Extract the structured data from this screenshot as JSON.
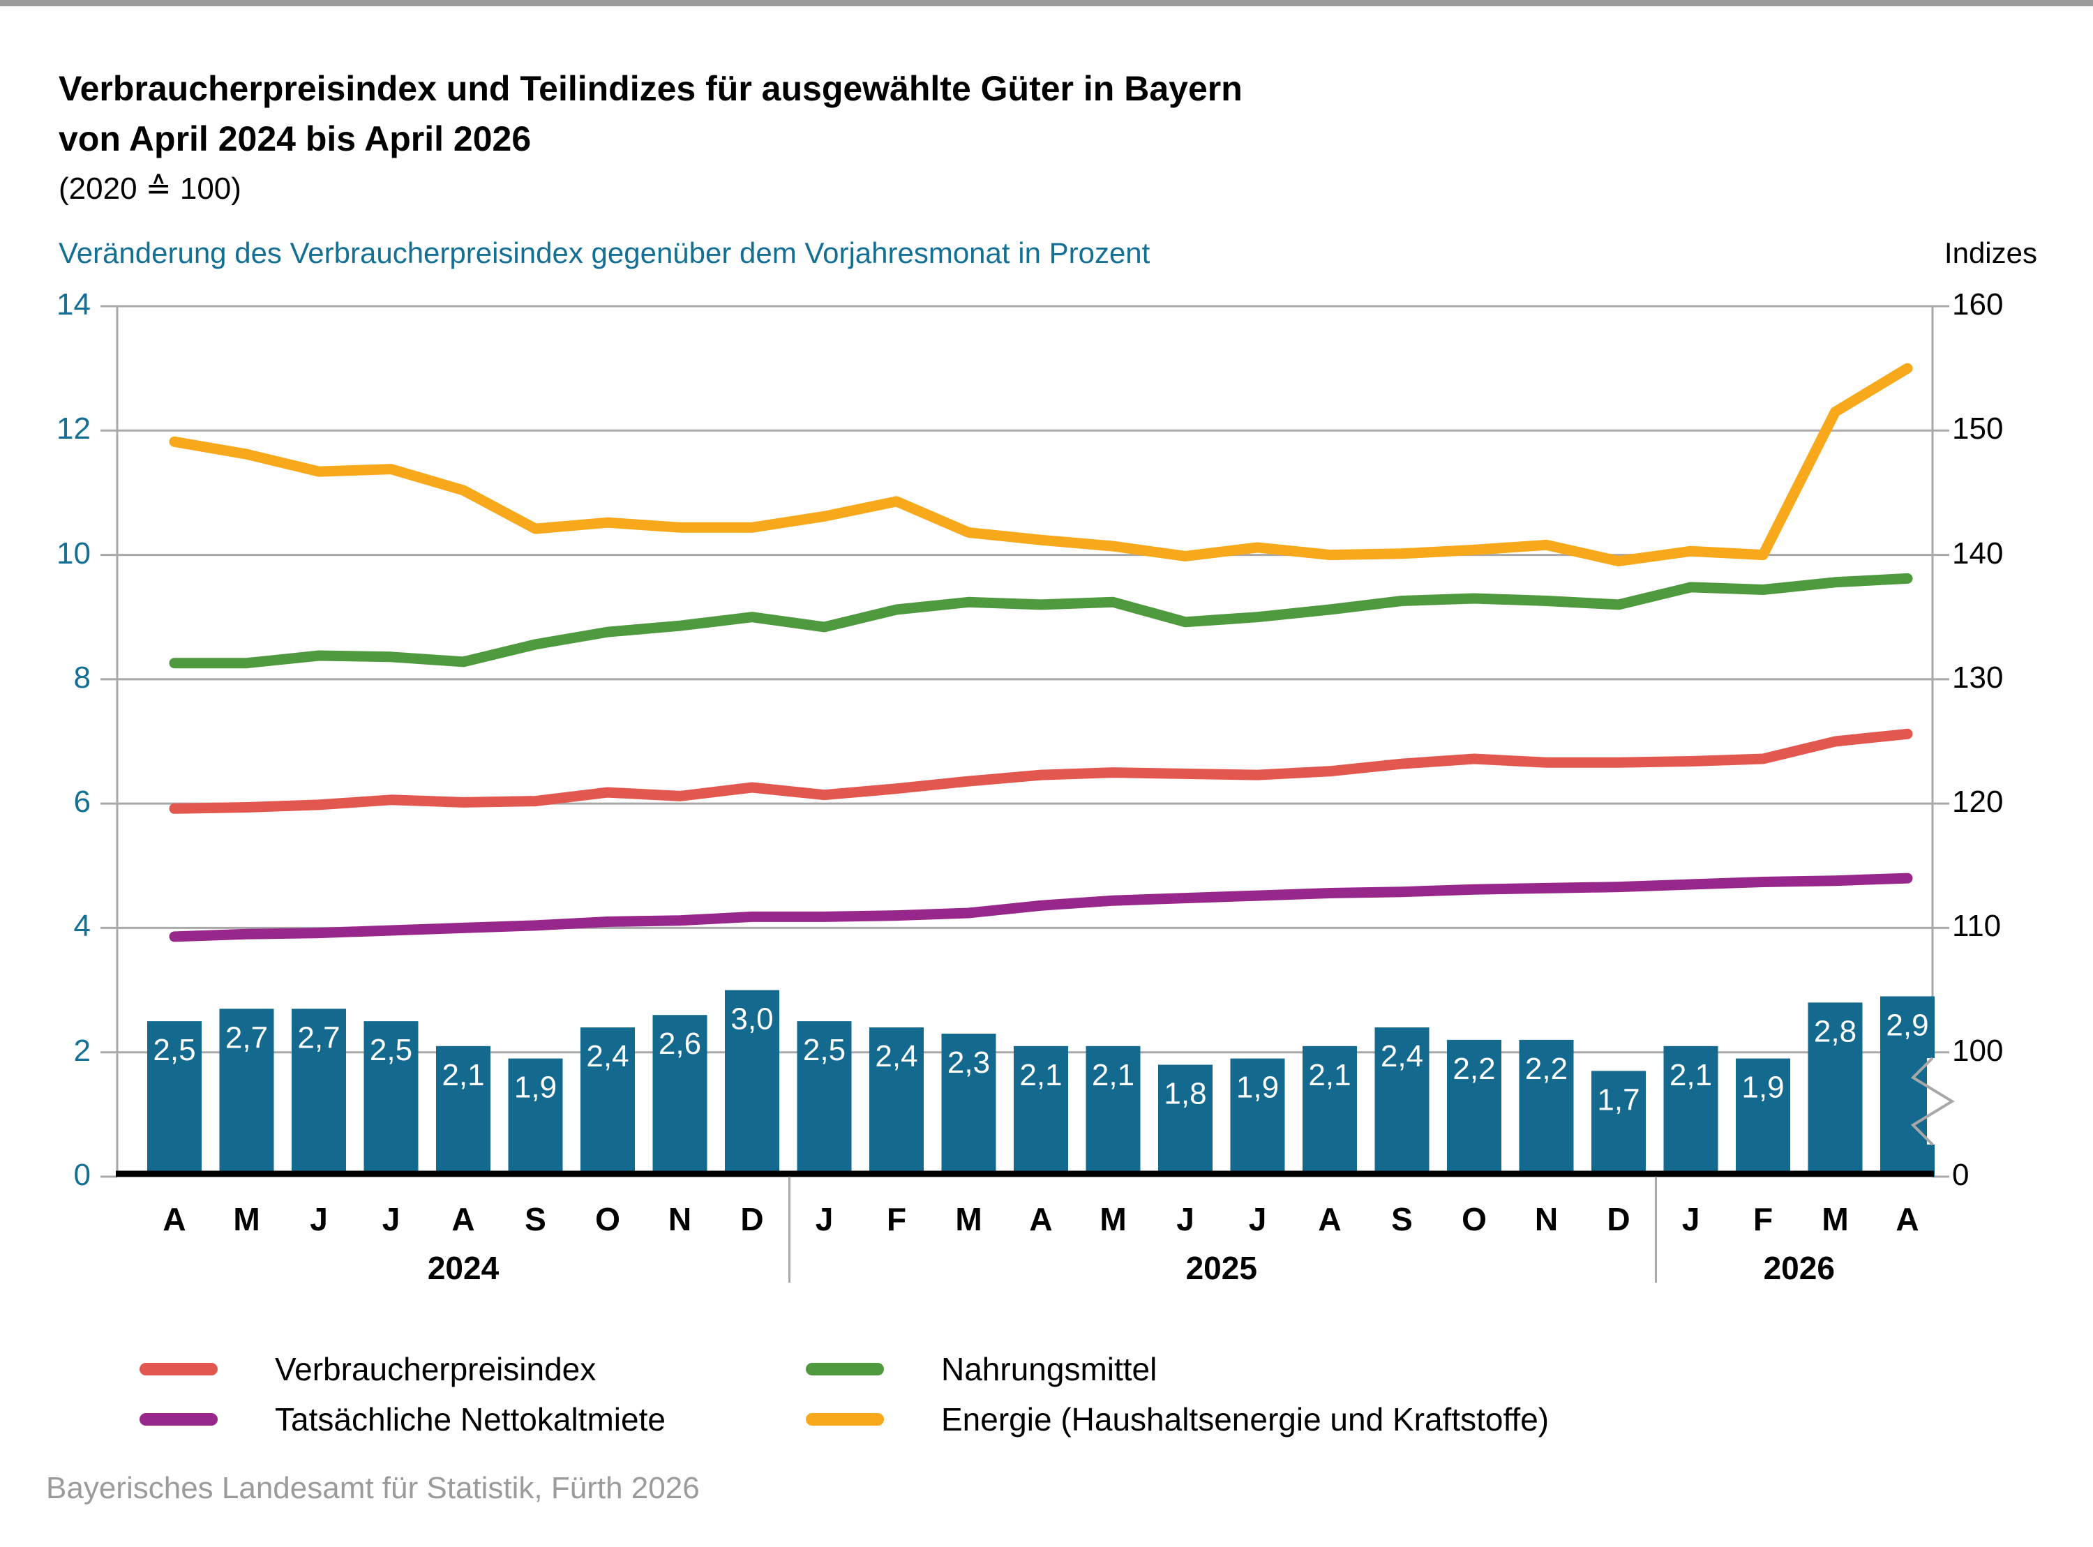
{
  "header": {
    "title": "Verbraucherpreisindex und Teilindizes für ausgewählte Güter in Bayern\nvon April 2024 bis April 2026",
    "unit_note": "(2020 ≙ 100)",
    "left_axis_title": "Veränderung des Verbraucherpreisindex gegenüber dem Vorjahresmonat in Prozent",
    "right_axis_title": "Indizes"
  },
  "chart_data": {
    "type": "bar+line",
    "months": [
      "A",
      "M",
      "J",
      "J",
      "A",
      "S",
      "O",
      "N",
      "D",
      "J",
      "F",
      "M",
      "A",
      "M",
      "J",
      "J",
      "A",
      "S",
      "O",
      "N",
      "D",
      "J",
      "F",
      "M",
      "A"
    ],
    "year_groups": [
      {
        "label": "2024",
        "from": 0,
        "to": 8
      },
      {
        "label": "2025",
        "from": 9,
        "to": 20
      },
      {
        "label": "2026",
        "from": 21,
        "to": 24
      }
    ],
    "bars": {
      "name": "Veränderung des Verbraucherpreisindex gegenüber dem Vorjahresmonat in Prozent",
      "values": [
        2.5,
        2.7,
        2.7,
        2.5,
        2.1,
        1.9,
        2.4,
        2.6,
        3.0,
        2.5,
        2.4,
        2.3,
        2.1,
        2.1,
        1.8,
        1.9,
        2.1,
        2.4,
        2.2,
        2.2,
        1.7,
        2.1,
        1.9,
        2.8,
        2.9
      ],
      "labels": [
        "2,5",
        "2,7",
        "2,7",
        "2,5",
        "2,1",
        "1,9",
        "2,4",
        "2,6",
        "3,0",
        "2,5",
        "2,4",
        "2,3",
        "2,1",
        "2,1",
        "1,8",
        "1,9",
        "2,1",
        "2,4",
        "2,2",
        "2,2",
        "1,7",
        "2,1",
        "1,9",
        "2,8",
        "2,9"
      ],
      "color": "#14698f"
    },
    "series": [
      {
        "name": "Verbraucherpreisindex",
        "color": "#e2574e",
        "values": [
          119.6,
          119.7,
          119.9,
          120.3,
          120.1,
          120.2,
          120.9,
          120.6,
          121.3,
          120.7,
          121.2,
          121.8,
          122.3,
          122.5,
          122.4,
          122.3,
          122.6,
          123.2,
          123.6,
          123.3,
          123.3,
          123.4,
          123.6,
          125.0,
          125.6
        ]
      },
      {
        "name": "Nahrungsmittel",
        "color": "#4f9a3e",
        "values": [
          131.3,
          131.3,
          131.9,
          131.8,
          131.4,
          132.8,
          133.8,
          134.3,
          135.0,
          134.2,
          135.6,
          136.2,
          136.0,
          136.2,
          134.6,
          135.0,
          135.6,
          136.3,
          136.5,
          136.3,
          136.0,
          137.4,
          137.2,
          137.8,
          138.1
        ]
      },
      {
        "name": "Tatsächliche Nettokaltmiete",
        "color": "#97278a",
        "values": [
          109.3,
          109.5,
          109.6,
          109.8,
          110.0,
          110.2,
          110.5,
          110.6,
          110.9,
          110.9,
          111.0,
          111.2,
          111.8,
          112.2,
          112.4,
          112.6,
          112.8,
          112.9,
          113.1,
          113.2,
          113.3,
          113.5,
          113.7,
          113.8,
          114.0
        ]
      },
      {
        "name": "Energie (Haushaltsenergie und Kraftstoffe)",
        "color": "#f7a81b",
        "values": [
          149.1,
          148.1,
          146.7,
          146.9,
          145.2,
          142.1,
          142.6,
          142.2,
          142.2,
          143.1,
          144.3,
          141.8,
          141.2,
          140.7,
          139.9,
          140.6,
          140.0,
          140.1,
          140.4,
          140.8,
          139.5,
          140.3,
          140.0,
          151.5,
          155.0
        ]
      }
    ],
    "left_axis": {
      "range": [
        0,
        14
      ],
      "ticks": [
        0,
        2,
        4,
        6,
        8,
        10,
        12,
        14
      ]
    },
    "right_axis": {
      "upper_ticks": [
        100,
        110,
        120,
        130,
        140,
        150,
        160
      ],
      "zero_label": "0",
      "mapping_offset": 90,
      "mapping_scale": 5,
      "axis_break": true
    },
    "grid": true,
    "colors": {
      "grid": "#a8a8a8",
      "axis": "#000000",
      "bar_label": "#ffffff",
      "tick_text_left": "#146f95",
      "tick_text_right": "#000000"
    }
  },
  "legend": {
    "items": [
      {
        "label": "Verbraucherpreisindex",
        "color": "#e2574e"
      },
      {
        "label": "Nahrungsmittel",
        "color": "#4f9a3e"
      },
      {
        "label": "Tatsächliche Nettokaltmiete",
        "color": "#97278a"
      },
      {
        "label": "Energie (Haushaltsenergie und Kraftstoffe)",
        "color": "#f7a81b"
      }
    ]
  },
  "footer": {
    "source": "Bayerisches Landesamt für Statistik, Fürth 2026"
  }
}
